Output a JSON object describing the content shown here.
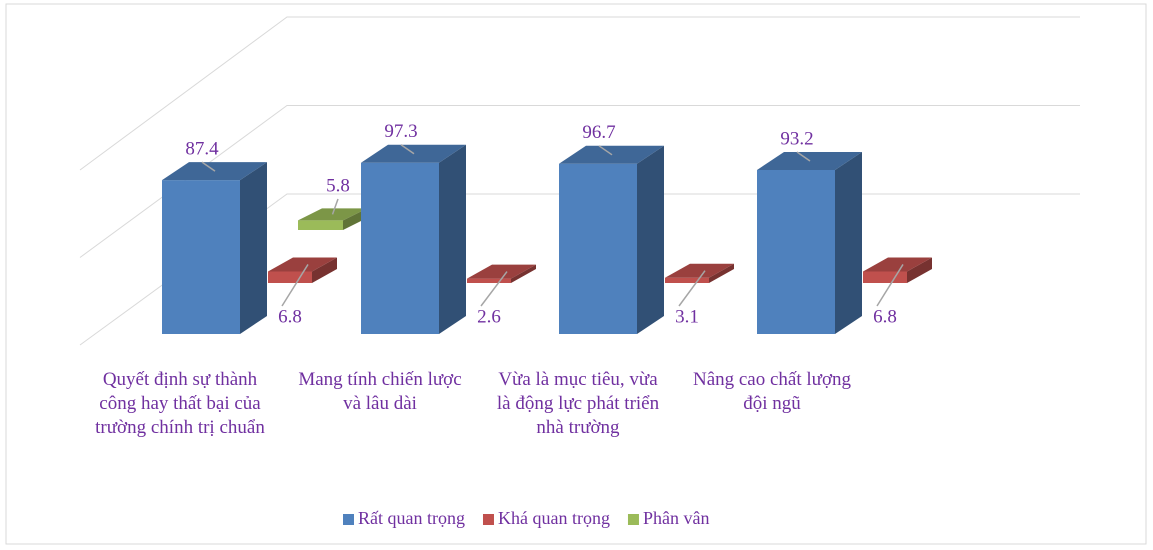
{
  "chart_data": {
    "type": "bar3d",
    "categories": [
      "Quyết định sự thành công hay thất bại của trường chính trị chuẩn",
      "Mang tính chiến lược và lâu dài",
      "Vừa là mục tiêu, vừa là động lực phát triển nhà trường",
      "Nâng cao chất lượng đội ngũ"
    ],
    "series": [
      {
        "name": "Rất quan trọng",
        "color": "#4f81bd",
        "values": [
          87.4,
          97.3,
          96.7,
          93.2
        ]
      },
      {
        "name": "Khá quan trọng",
        "color": "#c0504d",
        "values": [
          6.8,
          2.6,
          3.1,
          6.8
        ]
      },
      {
        "name": "Phân vân",
        "color": "#9bbb59",
        "values": [
          5.8,
          null,
          null,
          null
        ]
      }
    ],
    "ylim": [
      0,
      100
    ],
    "yticks": [
      0,
      50,
      100
    ],
    "grid": true,
    "legend": "bottom"
  }
}
